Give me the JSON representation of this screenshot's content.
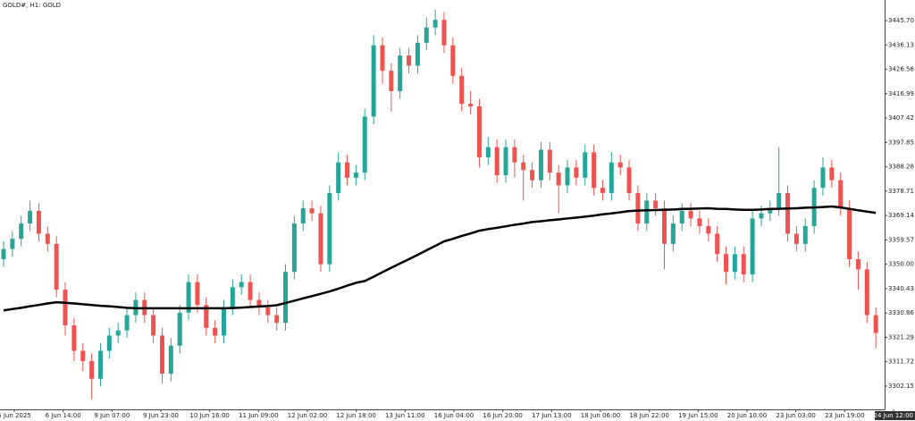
{
  "chart_data": {
    "type": "candlestick",
    "title": "GOLD#, H1:  GOLD",
    "x_labels": [
      "5 Jun 2025",
      "6 Jun 14:00",
      "9 Jun 07:00",
      "9 Jun 23:00",
      "10 Jun 16:00",
      "11 Jun 09:00",
      "12 Jun 02:00",
      "12 Jun 18:00",
      "13 Jun 11:00",
      "16 Jun 04:00",
      "16 Jun 20:00",
      "17 Jun 13:00",
      "18 Jun 06:00",
      "18 Jun 22:00",
      "19 Jun 15:00",
      "20 Jun 10:00",
      "23 Jun 03:00",
      "23 Jun 19:00",
      "24 Jun 12:00"
    ],
    "open": [
      3352,
      3356,
      3360,
      3366,
      3371,
      3362,
      3358,
      3340,
      3326,
      3316,
      3312,
      3305,
      3316,
      3322,
      3324,
      3330,
      3336,
      3330,
      3322,
      3307,
      3318,
      3331,
      3343,
      3334,
      3325,
      3322,
      3333,
      3341,
      3343,
      3336,
      3333,
      3330,
      3327,
      3347,
      3366,
      3372,
      3370,
      3350,
      3378,
      3390,
      3384,
      3386,
      3408,
      3436,
      3426,
      3418,
      3432,
      3428,
      3437,
      3443,
      3446,
      3436,
      3424,
      3413,
      3412,
      3392,
      3396,
      3385,
      3396,
      3390,
      3387,
      3383,
      3395,
      3386,
      3381,
      3388,
      3384,
      3394,
      3380,
      3378,
      3390,
      3388,
      3378,
      3366,
      3375,
      3372,
      3358,
      3366,
      3371,
      3368,
      3365,
      3362,
      3354,
      3347,
      3354,
      3346,
      3368,
      3370,
      3372,
      3378,
      3362,
      3358,
      3365,
      3380,
      3388,
      3383,
      3372,
      3352,
      3348,
      3330
    ],
    "high": [
      3359,
      3363,
      3369,
      3375,
      3374,
      3365,
      3361,
      3343,
      3329,
      3319,
      3315,
      3319,
      3325,
      3327,
      3333,
      3339,
      3339,
      3333,
      3325,
      3321,
      3334,
      3346,
      3346,
      3337,
      3328,
      3336,
      3344,
      3346,
      3346,
      3339,
      3336,
      3333,
      3350,
      3369,
      3375,
      3375,
      3373,
      3381,
      3394,
      3393,
      3389,
      3411,
      3440,
      3439,
      3429,
      3435,
      3435,
      3440,
      3447,
      3450,
      3449,
      3439,
      3427,
      3418,
      3415,
      3400,
      3399,
      3399,
      3399,
      3393,
      3390,
      3398,
      3398,
      3389,
      3391,
      3391,
      3397,
      3397,
      3383,
      3394,
      3393,
      3391,
      3381,
      3378,
      3378,
      3375,
      3369,
      3374,
      3374,
      3371,
      3368,
      3365,
      3357,
      3357,
      3357,
      3371,
      3373,
      3375,
      3396,
      3381,
      3365,
      3368,
      3383,
      3392,
      3391,
      3386,
      3375,
      3355,
      3351,
      3333
    ],
    "low": [
      3349,
      3353,
      3357,
      3363,
      3359,
      3355,
      3337,
      3322,
      3312,
      3308,
      3297,
      3302,
      3313,
      3319,
      3321,
      3327,
      3327,
      3319,
      3303,
      3304,
      3315,
      3328,
      3331,
      3322,
      3319,
      3319,
      3330,
      3338,
      3333,
      3330,
      3327,
      3324,
      3324,
      3344,
      3363,
      3367,
      3347,
      3347,
      3375,
      3381,
      3381,
      3383,
      3405,
      3421,
      3410,
      3415,
      3425,
      3425,
      3434,
      3440,
      3433,
      3421,
      3410,
      3409,
      3388,
      3389,
      3382,
      3382,
      3384,
      3375,
      3380,
      3380,
      3383,
      3370,
      3378,
      3381,
      3381,
      3377,
      3375,
      3375,
      3385,
      3375,
      3363,
      3363,
      3369,
      3348,
      3355,
      3363,
      3365,
      3362,
      3359,
      3351,
      3342,
      3344,
      3343,
      3343,
      3365,
      3367,
      3369,
      3359,
      3355,
      3355,
      3362,
      3377,
      3380,
      3369,
      3349,
      3340,
      3327,
      3317
    ],
    "close": [
      3356,
      3360,
      3366,
      3371,
      3362,
      3358,
      3340,
      3326,
      3316,
      3312,
      3305,
      3316,
      3322,
      3324,
      3330,
      3336,
      3330,
      3322,
      3307,
      3318,
      3331,
      3343,
      3334,
      3325,
      3322,
      3333,
      3341,
      3343,
      3336,
      3333,
      3330,
      3327,
      3347,
      3366,
      3372,
      3370,
      3350,
      3378,
      3390,
      3384,
      3386,
      3408,
      3436,
      3426,
      3418,
      3432,
      3428,
      3437,
      3443,
      3446,
      3436,
      3424,
      3413,
      3412,
      3392,
      3396,
      3385,
      3396,
      3390,
      3387,
      3383,
      3395,
      3386,
      3381,
      3388,
      3384,
      3394,
      3380,
      3378,
      3390,
      3388,
      3378,
      3366,
      3375,
      3372,
      3358,
      3366,
      3371,
      3368,
      3365,
      3362,
      3354,
      3347,
      3354,
      3346,
      3368,
      3370,
      3372,
      3378,
      3362,
      3358,
      3365,
      3380,
      3388,
      3383,
      3372,
      3352,
      3348,
      3330,
      3323
    ],
    "ma": [
      3331.9,
      3332.4,
      3332.9,
      3333.5,
      3334.0,
      3334.6,
      3335.1,
      3334.9,
      3334.6,
      3334.3,
      3334.0,
      3333.7,
      3333.5,
      3333.2,
      3332.9,
      3332.7,
      3332.7,
      3332.7,
      3332.7,
      3332.7,
      3332.7,
      3332.7,
      3332.7,
      3332.7,
      3332.7,
      3332.7,
      3332.8,
      3333.0,
      3333.2,
      3333.4,
      3333.6,
      3333.9,
      3334.8,
      3335.7,
      3336.6,
      3337.5,
      3338.4,
      3339.3,
      3340.4,
      3341.6,
      3342.7,
      3343.4,
      3345.1,
      3346.9,
      3348.6,
      3350.3,
      3352.0,
      3353.7,
      3355.5,
      3357.2,
      3359.0,
      3360.0,
      3361.1,
      3362.1,
      3363.2,
      3363.8,
      3364.3,
      3364.9,
      3365.5,
      3366.0,
      3366.6,
      3366.9,
      3367.3,
      3367.6,
      3368.0,
      3368.3,
      3368.7,
      3369.1,
      3369.6,
      3370.0,
      3370.4,
      3370.9,
      3371.1,
      3371.2,
      3371.3,
      3371.4,
      3371.5,
      3371.7,
      3371.8,
      3371.9,
      3372.0,
      3371.8,
      3371.7,
      3371.5,
      3371.4,
      3371.4,
      3371.5,
      3371.7,
      3371.8,
      3371.9,
      3372.0,
      3372.2,
      3372.3,
      3372.5,
      3372.7,
      3372.3,
      3371.8,
      3371.2,
      3370.7,
      3370.2
    ],
    "up_color": "#26a69a",
    "down_color": "#ef5350",
    "ma_color": "#000000",
    "ylim": [
      3293.0,
      3453.8
    ],
    "yticks": [
      {
        "value": 3445.7,
        "label": "3445.70"
      },
      3436.13,
      3426.56,
      3416.99,
      3407.42,
      3397.85,
      3388.28,
      3378.71,
      3369.14,
      3359.57,
      {
        "value": 3350,
        "label": "3350.00"
      },
      3340.43,
      3330.86,
      3321.29,
      3311.72,
      3302.15
    ]
  }
}
